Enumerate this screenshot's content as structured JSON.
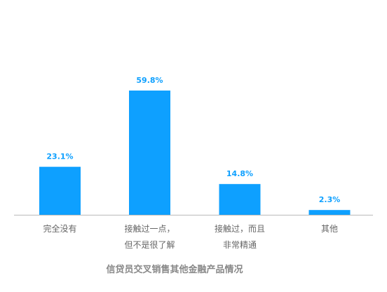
{
  "chart_data": {
    "type": "bar",
    "title": "信贷员交叉销售其他金融产品情况",
    "categories": [
      [
        "完全没有"
      ],
      [
        "接触过一点，",
        "但不是很了解"
      ],
      [
        "接触过，而且",
        "非常精通"
      ],
      [
        "其他"
      ]
    ],
    "values": [
      23.1,
      59.8,
      14.8,
      2.3
    ],
    "value_labels": [
      "23.1%",
      "59.8%",
      "14.8%",
      "2.3%"
    ],
    "unit": "%",
    "ylim": [
      0,
      100
    ],
    "grid": false,
    "legend": "none"
  },
  "colors": {
    "bar": "#0ea0ff",
    "value_label": "#0ea0ff",
    "category_label": "#666666",
    "title": "#888888",
    "axis": "#bbbbbb",
    "background": "#ffffff"
  }
}
